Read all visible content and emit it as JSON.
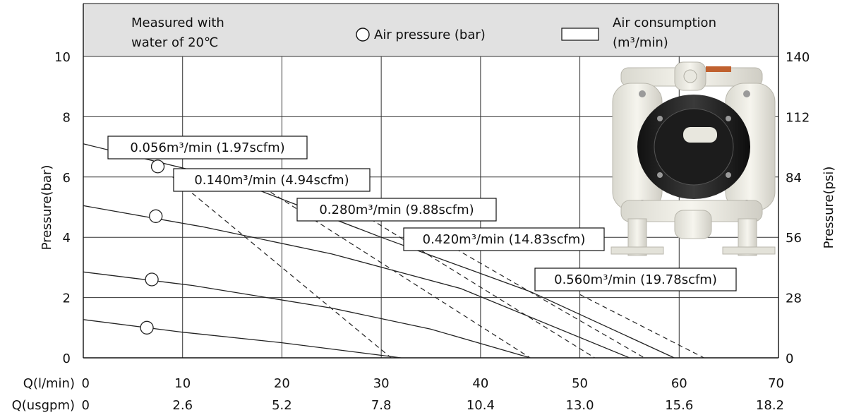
{
  "chart_data": {
    "type": "line",
    "header": {
      "note_line1": "Measured with",
      "note_line2": "water of 20℃",
      "air_pressure_legend": "Air pressure (bar)",
      "air_consumption_line1": "Air consumption",
      "air_consumption_line2": "(m³/min)"
    },
    "xlabel": "Q(l/min)",
    "xlabel2": "Q(usgpm)",
    "ylabel": "Pressure(bar)",
    "ylabel_right": "Pressure(psi)",
    "xlim": [
      0,
      70
    ],
    "ylim": [
      0,
      10
    ],
    "x_ticks": [
      "0",
      "10",
      "20",
      "30",
      "40",
      "50",
      "60",
      "70"
    ],
    "x_ticks2": [
      "0",
      "2.6",
      "5.2",
      "7.8",
      "10.4",
      "13.0",
      "15.6",
      "18.2"
    ],
    "y_ticks": [
      "0",
      "2",
      "4",
      "6",
      "8",
      "10"
    ],
    "y_ticks_right": [
      "0",
      "28",
      "56",
      "84",
      "112",
      "140"
    ],
    "grid": true,
    "pressure_curves": [
      {
        "points": [
          [
            0,
            7.1
          ],
          [
            15,
            5.9
          ],
          [
            30,
            4.0
          ],
          [
            45,
            2.2
          ],
          [
            59.5,
            0
          ]
        ],
        "marker": [
          7.5,
          6.35
        ]
      },
      {
        "points": [
          [
            0,
            5.05
          ],
          [
            12,
            4.35
          ],
          [
            25,
            3.45
          ],
          [
            38,
            2.3
          ],
          [
            55,
            0
          ]
        ],
        "marker": [
          7.3,
          4.7
        ]
      },
      {
        "points": [
          [
            0,
            2.85
          ],
          [
            11,
            2.4
          ],
          [
            25,
            1.65
          ],
          [
            35,
            0.95
          ],
          [
            45,
            0
          ]
        ],
        "marker": [
          6.9,
          2.6
        ]
      },
      {
        "points": [
          [
            0,
            1.27
          ],
          [
            10,
            0.85
          ],
          [
            20,
            0.5
          ],
          [
            32,
            0
          ]
        ],
        "marker": [
          6.4,
          1.0
        ]
      }
    ],
    "air_consumption_curves": [
      {
        "label": "0.056m³/min (1.97scfm)",
        "points": [
          [
            9,
            6.0
          ],
          [
            31,
            0
          ]
        ]
      },
      {
        "label": "0.140m³/min (4.94scfm)",
        "points": [
          [
            16,
            6.1
          ],
          [
            45,
            0
          ]
        ]
      },
      {
        "label": "0.280m³/min (9.88scfm)",
        "points": [
          [
            26,
            5.2
          ],
          [
            51.5,
            0
          ]
        ]
      },
      {
        "label": "0.420m³/min (14.83scfm)",
        "points": [
          [
            36,
            3.9
          ],
          [
            56.5,
            0
          ]
        ]
      },
      {
        "label": "0.560m³/min (19.78scfm)",
        "points": [
          [
            50,
            2.1
          ],
          [
            62.5,
            0
          ]
        ]
      }
    ]
  },
  "product_image_name": "diaphragm-pump-image"
}
